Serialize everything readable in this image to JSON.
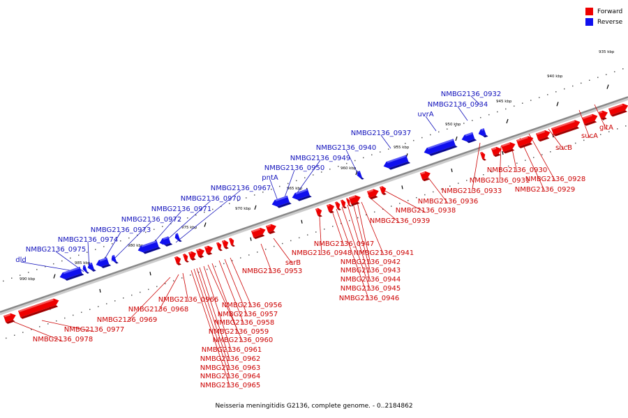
{
  "title": "Neisseria meningitidis G2136, complete genome. - 0..2184862",
  "legend": {
    "forward": "Forward",
    "reverse": "Reverse"
  },
  "colors": {
    "forward": "#ee0000",
    "reverse": "#1010ee",
    "axis": "#888888",
    "label_forward": "#cc0000",
    "label_reverse": "#1010bb"
  },
  "ticks": [
    "935 kbp",
    "940 kbp",
    "945 kbp",
    "950 kbp",
    "955 kbp",
    "960 kbp",
    "965 kbp",
    "970 kbp",
    "975 kbp",
    "980 kbp",
    "985 kbp",
    "990 kbp"
  ],
  "reverse_genes": [
    "NMBG2136_0932",
    "NMBG2136_0934",
    "uvrA",
    "NMBG2136_0937",
    "NMBG2136_0940",
    "NMBG2136_0949",
    "NMBG2136_0950",
    "pntA",
    "NMBG2136_0967",
    "NMBG2136_0970",
    "NMBG2136_0971",
    "NMBG2136_0972",
    "NMBG2136_0973",
    "NMBG2136_0974",
    "NMBG2136_0975",
    "dld"
  ],
  "forward_genes": [
    "gltA",
    "sucA",
    "sucB",
    "NMBG2136_0928",
    "NMBG2136_0929",
    "NMBG2136_0930",
    "NMBG2136_0931",
    "NMBG2136_0933",
    "NMBG2136_0936",
    "NMBG2136_0938",
    "NMBG2136_0939",
    "NMBG2136_0941",
    "NMBG2136_0942",
    "NMBG2136_0943",
    "NMBG2136_0944",
    "NMBG2136_0945",
    "NMBG2136_0946",
    "NMBG2136_0947",
    "NMBG2136_0948",
    "serB",
    "NMBG2136_0953",
    "NMBG2136_0956",
    "NMBG2136_0957",
    "NMBG2136_0958",
    "NMBG2136_0959",
    "NMBG2136_0960",
    "NMBG2136_0961",
    "NMBG2136_0962",
    "NMBG2136_0963",
    "NMBG2136_0964",
    "NMBG2136_0965",
    "NMBG2136_0966",
    "NMBG2136_0968",
    "NMBG2136_0969",
    "NMBG2136_0977",
    "NMBG2136_0978"
  ]
}
